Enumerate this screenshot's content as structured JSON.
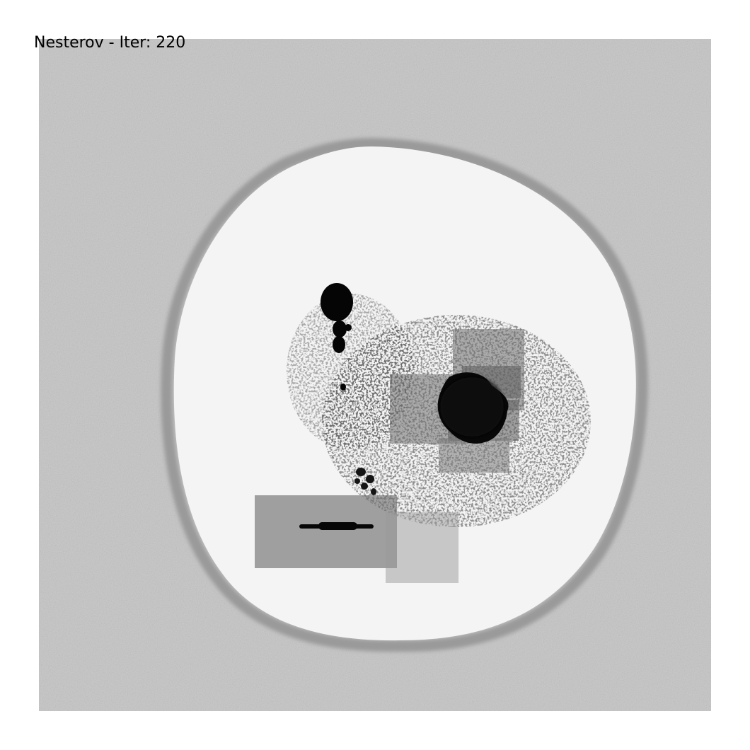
{
  "figure": {
    "title": "Nesterov - Iter: 220"
  },
  "colors": {
    "background": "#c9c9c9",
    "disc": "#f3f3f3",
    "rim": "#9a9a9a",
    "blob": "#050505",
    "box_dark": "#4a4a4a",
    "box_light": "#8a8a8a"
  }
}
